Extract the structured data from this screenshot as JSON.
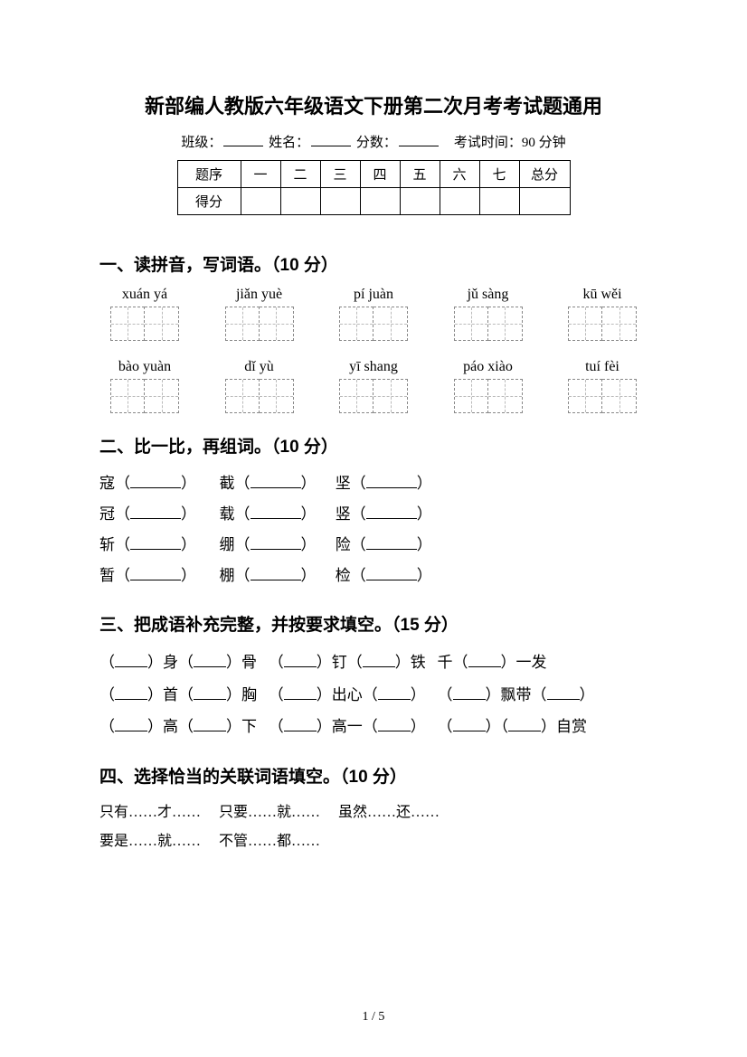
{
  "title": "新部编人教版六年级语文下册第二次月考考试题通用",
  "meta": {
    "class_label": "班级：",
    "name_label": "姓名：",
    "score_label": "分数：",
    "time_label": "考试时间：90 分钟"
  },
  "score_table": {
    "row_header_1": "题序",
    "row_header_2": "得分",
    "cols": [
      "一",
      "二",
      "三",
      "四",
      "五",
      "六",
      "七"
    ],
    "total": "总分"
  },
  "section1": {
    "heading": "一、读拼音，写词语。（10 分）",
    "row1": [
      "xuán yá",
      "jiǎn yuè",
      "pí juàn",
      "jǔ sàng",
      "kū wěi"
    ],
    "row2": [
      "bào yuàn",
      "dǐ yù",
      "yī shang",
      "páo xiào",
      "tuí fèi"
    ]
  },
  "section2": {
    "heading": "二、比一比，再组词。（10 分）",
    "pairs": [
      [
        "寇",
        "截",
        "坚"
      ],
      [
        "冠",
        "载",
        "竖"
      ],
      [
        "斩",
        "绷",
        "险"
      ],
      [
        "暂",
        "棚",
        "检"
      ]
    ]
  },
  "section3": {
    "heading": "三、把成语补充完整，并按要求填空。（15 分）",
    "lines": [
      [
        "（",
        "）身（",
        "）骨",
        "（",
        "）钉（",
        "）铁",
        "千（",
        "）一发"
      ],
      [
        "（",
        "）首（",
        "）胸",
        "（",
        "）出心（",
        "）",
        "（",
        "）飘带（",
        "）"
      ],
      [
        "（",
        "）高（",
        "）下",
        "（",
        "）高一（",
        "）",
        "（",
        "）（",
        "）自赏"
      ]
    ]
  },
  "section4": {
    "heading": "四、选择恰当的关联词语填空。（10 分）",
    "row1": [
      "只有……才……",
      "只要……就……",
      "虽然……还……"
    ],
    "row2": [
      "要是……就……",
      "不管……都……"
    ]
  },
  "page_num": "1 / 5",
  "colors": {
    "text": "#000000",
    "bg": "#ffffff",
    "dash": "#888888",
    "dash_light": "#bbbbbb"
  }
}
